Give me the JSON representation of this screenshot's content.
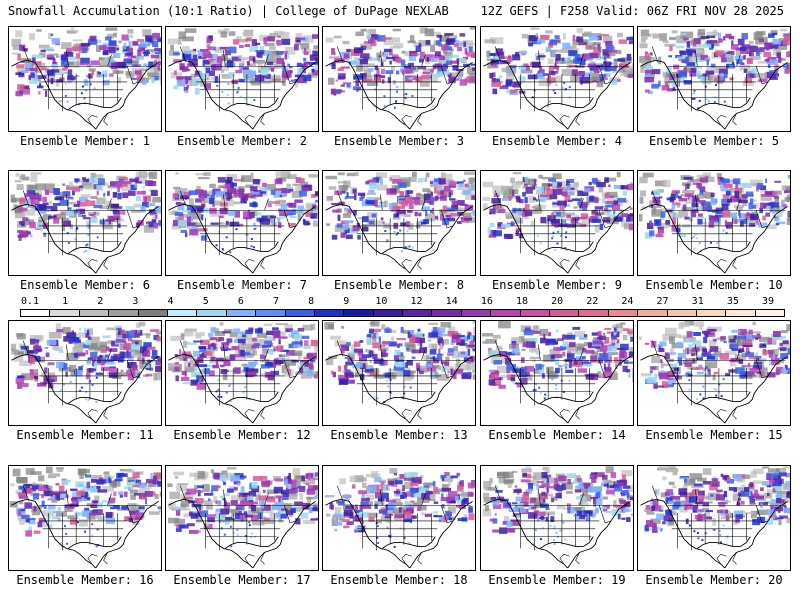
{
  "header": {
    "left": "Snowfall Accumulation (10:1 Ratio) | College of DuPage NEXLAB",
    "right": "12Z GEFS | F258 Valid: 06Z FRI NOV 28 2025"
  },
  "members": [
    {
      "label": "Ensemble Member: 1",
      "seed": 11
    },
    {
      "label": "Ensemble Member: 2",
      "seed": 23
    },
    {
      "label": "Ensemble Member: 3",
      "seed": 37
    },
    {
      "label": "Ensemble Member: 4",
      "seed": 41
    },
    {
      "label": "Ensemble Member: 5",
      "seed": 53
    },
    {
      "label": "Ensemble Member: 6",
      "seed": 67
    },
    {
      "label": "Ensemble Member: 7",
      "seed": 71
    },
    {
      "label": "Ensemble Member: 8",
      "seed": 83
    },
    {
      "label": "Ensemble Member: 9",
      "seed": 97
    },
    {
      "label": "Ensemble Member: 10",
      "seed": 103
    },
    {
      "label": "Ensemble Member: 11",
      "seed": 113
    },
    {
      "label": "Ensemble Member: 12",
      "seed": 127
    },
    {
      "label": "Ensemble Member: 13",
      "seed": 131
    },
    {
      "label": "Ensemble Member: 14",
      "seed": 149
    },
    {
      "label": "Ensemble Member: 15",
      "seed": 151
    },
    {
      "label": "Ensemble Member: 16",
      "seed": 163
    },
    {
      "label": "Ensemble Member: 17",
      "seed": 173
    },
    {
      "label": "Ensemble Member: 18",
      "seed": 181
    },
    {
      "label": "Ensemble Member: 19",
      "seed": 191
    },
    {
      "label": "Ensemble Member: 20",
      "seed": 199
    }
  ],
  "colorbar": {
    "labels": [
      "0.1",
      "1",
      "2",
      "3",
      "4",
      "5",
      "6",
      "7",
      "8",
      "9",
      "10",
      "12",
      "14",
      "16",
      "18",
      "20",
      "22",
      "24",
      "27",
      "31",
      "35",
      "39"
    ],
    "colors": [
      "#ffffff",
      "#dcdcdc",
      "#bdbdbd",
      "#9e9e9e",
      "#7f7f7f",
      "#bfefff",
      "#9ad8f0",
      "#7fb2ff",
      "#5c8df5",
      "#3a5fe8",
      "#2030d0",
      "#1a1aa8",
      "#3b1ea0",
      "#5a22a8",
      "#7a2aa8",
      "#9a36b0",
      "#b845b8",
      "#c850a8",
      "#d55a98",
      "#e06a90",
      "#e88a90",
      "#f0aaa0",
      "#f5c4b0",
      "#f8d8c0",
      "#fbe8d4",
      "#fff4e8"
    ]
  }
}
